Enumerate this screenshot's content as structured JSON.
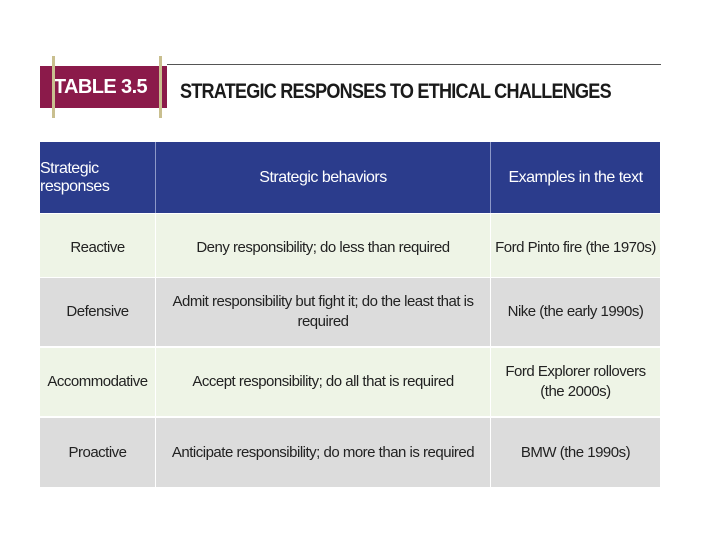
{
  "header": {
    "label": "TABLE 3.5",
    "title": "STRATEGIC RESPONSES TO ETHICAL CHALLENGES"
  },
  "table": {
    "columns": [
      "Strategic responses",
      "Strategic behaviors",
      "Examples in the text"
    ],
    "rows": [
      {
        "response": "Reactive",
        "behavior": "Deny responsibility; do less than required",
        "example": "Ford Pinto fire (the 1970s)"
      },
      {
        "response": "Defensive",
        "behavior": "Admit responsibility but fight it; do the least that is required",
        "example": "Nike (the early 1990s)"
      },
      {
        "response": "Accommodative",
        "behavior": "Accept responsibility; do all that is required",
        "example": "Ford Explorer rollovers (the 2000s)"
      },
      {
        "response": "Proactive",
        "behavior": "Anticipate responsibility; do more than is required",
        "example": "BMW (the 1990s)"
      }
    ]
  },
  "colors": {
    "label_bg": "#8b1a4a",
    "header_bg": "#2b3c8c",
    "row_light": "#eef4e6",
    "row_dark": "#dcdcdc"
  }
}
